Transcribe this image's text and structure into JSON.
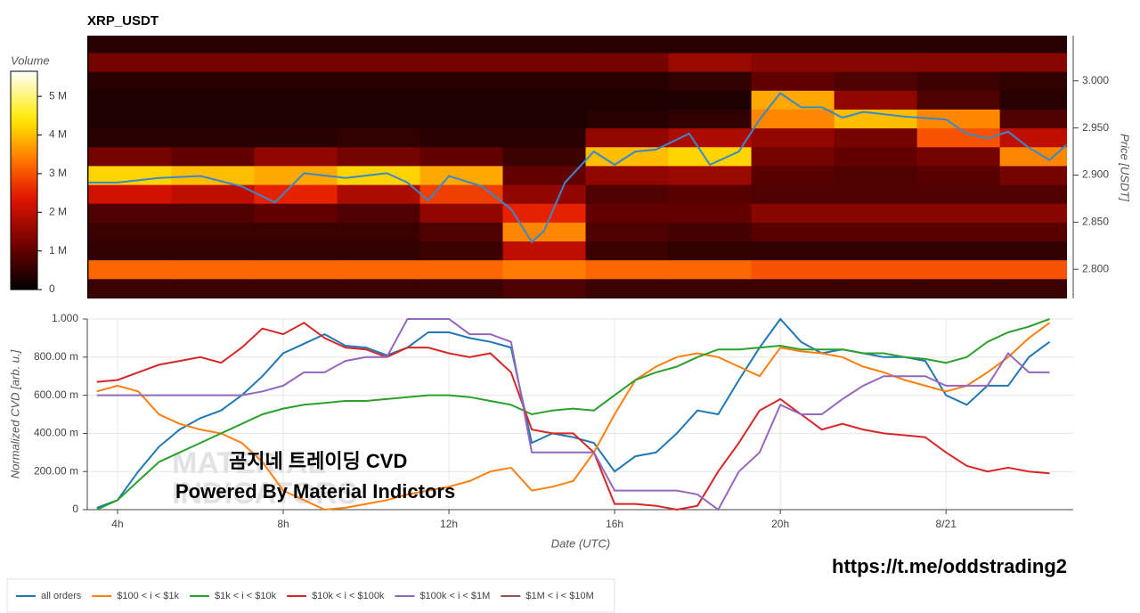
{
  "chart_data": [
    {
      "type": "heatmap",
      "title": "XRP_USDT",
      "colorbar_title": "Volume",
      "zlim": [
        0,
        5.65
      ],
      "colorbar_ticks": [
        0,
        {
          "value": 1,
          "label": "1 M"
        },
        {
          "value": 2,
          "label": "2 M"
        },
        {
          "value": 3,
          "label": "3 M"
        },
        {
          "value": 4,
          "label": "4 M"
        },
        {
          "value": 5,
          "label": "5 M"
        }
      ],
      "y_label": "Price [USDT]",
      "ylim": [
        2.769,
        3.048
      ],
      "yticks": [
        {
          "value": 2.8,
          "label": "2.800"
        },
        {
          "value": 2.85,
          "label": "2.850"
        },
        {
          "value": 2.9,
          "label": "2.900"
        },
        {
          "value": 2.95,
          "label": "2.950"
        },
        {
          "value": 3.0,
          "label": "3.000"
        }
      ],
      "xlim": [
        3.27,
        26.92
      ],
      "x_bins": [
        3.3,
        5.3,
        7.3,
        9.3,
        11.3,
        13.3,
        15.3,
        17.3,
        19.3,
        21.3,
        23.3,
        25.3,
        26.92
      ],
      "y_bins": [
        2.77,
        2.79,
        2.81,
        2.83,
        2.85,
        2.87,
        2.89,
        2.91,
        2.93,
        2.95,
        2.97,
        2.99,
        3.01,
        3.03,
        3.05
      ],
      "z": [
        [
          0.6,
          0.6,
          0.6,
          0.6,
          0.6,
          0.8,
          0.6,
          0.6,
          0.6,
          0.6,
          0.6,
          0.6
        ],
        [
          3.2,
          3.2,
          3.2,
          3.2,
          3.2,
          3.4,
          3.2,
          3.2,
          3.0,
          3.0,
          3.0,
          3.0
        ],
        [
          0.5,
          0.5,
          0.5,
          0.5,
          0.6,
          2.0,
          0.6,
          0.5,
          0.5,
          0.5,
          0.5,
          0.5
        ],
        [
          0.6,
          0.6,
          0.6,
          0.6,
          0.8,
          3.5,
          0.8,
          0.7,
          0.9,
          0.9,
          0.9,
          0.9
        ],
        [
          0.8,
          0.8,
          1.0,
          0.8,
          1.5,
          2.5,
          1.0,
          1.0,
          1.4,
          1.4,
          1.4,
          1.4
        ],
        [
          2.2,
          2.0,
          2.5,
          1.8,
          2.8,
          1.5,
          0.8,
          0.9,
          0.8,
          0.8,
          0.8,
          0.8
        ],
        [
          4.2,
          4.0,
          3.8,
          4.2,
          3.8,
          1.0,
          1.5,
          1.6,
          0.9,
          0.8,
          0.9,
          1.2
        ],
        [
          1.2,
          1.0,
          1.5,
          1.2,
          1.0,
          0.6,
          4.0,
          4.2,
          1.2,
          1.0,
          1.2,
          3.5
        ],
        [
          0.4,
          0.4,
          0.4,
          0.5,
          0.4,
          0.4,
          1.5,
          1.8,
          1.5,
          1.2,
          3.0,
          2.0
        ],
        [
          0.3,
          0.3,
          0.3,
          0.3,
          0.3,
          0.3,
          0.4,
          0.5,
          3.5,
          4.0,
          3.5,
          0.8
        ],
        [
          0.3,
          0.3,
          0.3,
          0.3,
          0.3,
          0.3,
          0.3,
          0.3,
          3.8,
          1.5,
          0.8,
          0.4
        ],
        [
          0.4,
          0.4,
          0.4,
          0.4,
          0.4,
          0.4,
          0.4,
          0.5,
          1.0,
          0.8,
          0.6,
          0.5
        ],
        [
          1.2,
          1.2,
          1.2,
          1.2,
          1.2,
          1.2,
          1.2,
          1.6,
          1.4,
          1.4,
          1.4,
          1.4
        ],
        [
          0.4,
          0.4,
          0.4,
          0.4,
          0.4,
          0.4,
          0.4,
          0.4,
          0.4,
          0.4,
          0.4,
          0.4
        ]
      ],
      "price": {
        "color": "#3a88c8",
        "x": [
          3.3,
          4,
          5,
          6,
          7,
          7.8,
          8.5,
          9.5,
          10.5,
          11,
          11.5,
          12,
          12.8,
          13.5,
          14,
          14.3,
          14.8,
          15.5,
          16,
          16.5,
          17,
          17.8,
          18.3,
          19,
          19.5,
          20,
          20.5,
          21,
          21.5,
          22,
          23,
          24,
          24.5,
          25,
          25.5,
          26,
          26.5,
          26.9
        ],
        "values": [
          2.892,
          2.892,
          2.897,
          2.899,
          2.888,
          2.871,
          2.902,
          2.897,
          2.902,
          2.892,
          2.873,
          2.899,
          2.888,
          2.864,
          2.829,
          2.841,
          2.892,
          2.925,
          2.911,
          2.925,
          2.927,
          2.944,
          2.911,
          2.925,
          2.959,
          2.987,
          2.972,
          2.972,
          2.961,
          2.967,
          2.962,
          2.959,
          2.944,
          2.939,
          2.946,
          2.929,
          2.916,
          2.932
        ]
      }
    },
    {
      "type": "line",
      "x_label": "Date (UTC)",
      "y_label": "Normalized CVD [arb. u.]",
      "xlim": [
        3.27,
        27.07
      ],
      "xticks": [
        {
          "value": 4,
          "label": "4h"
        },
        {
          "value": 8,
          "label": "8h"
        },
        {
          "value": 12,
          "label": "12h"
        },
        {
          "value": 16,
          "label": "16h"
        },
        {
          "value": 20,
          "label": "20h"
        },
        {
          "value": 24,
          "label": "8/21"
        }
      ],
      "ylim": [
        0,
        1
      ],
      "yticks": [
        0,
        {
          "value": 0.2,
          "label": "200.00 m"
        },
        {
          "value": 0.4,
          "label": "400.00 m"
        },
        {
          "value": 0.6,
          "label": "600.00 m"
        },
        {
          "value": 0.8,
          "label": "800.00 m"
        },
        {
          "value": 1,
          "label": "1.000"
        }
      ],
      "grid": true,
      "legend": "bottom",
      "x": [
        3.5,
        4,
        4.5,
        5,
        5.5,
        6,
        6.5,
        7,
        7.5,
        8,
        8.5,
        9,
        9.5,
        10,
        10.5,
        11,
        11.5,
        12,
        12.5,
        13,
        13.5,
        14,
        14.5,
        15,
        15.5,
        16,
        16.5,
        17,
        17.5,
        18,
        18.5,
        19,
        19.5,
        20,
        20.5,
        21,
        21.5,
        22,
        22.5,
        23,
        23.5,
        24,
        24.5,
        25,
        25.5,
        26,
        26.5
      ],
      "series": [
        {
          "name": "all orders",
          "color": "#1f77b4",
          "values": [
            0.01,
            0.05,
            0.2,
            0.33,
            0.42,
            0.48,
            0.52,
            0.6,
            0.7,
            0.82,
            0.87,
            0.92,
            0.86,
            0.85,
            0.81,
            0.85,
            0.93,
            0.93,
            0.9,
            0.88,
            0.85,
            0.35,
            0.4,
            0.38,
            0.35,
            0.2,
            0.28,
            0.3,
            0.4,
            0.52,
            0.5,
            0.68,
            0.85,
            1.0,
            0.88,
            0.82,
            0.84,
            0.82,
            0.8,
            0.8,
            0.78,
            0.6,
            0.55,
            0.65,
            0.65,
            0.8,
            0.88
          ]
        },
        {
          "name": "$100 < i < $1k",
          "color": "#ff7f0e",
          "values": [
            0.62,
            0.65,
            0.62,
            0.5,
            0.45,
            0.42,
            0.4,
            0.35,
            0.25,
            0.1,
            0.05,
            0.0,
            0.01,
            0.03,
            0.05,
            0.08,
            0.1,
            0.12,
            0.15,
            0.2,
            0.22,
            0.1,
            0.12,
            0.15,
            0.3,
            0.5,
            0.68,
            0.75,
            0.8,
            0.82,
            0.8,
            0.75,
            0.7,
            0.85,
            0.83,
            0.82,
            0.8,
            0.75,
            0.72,
            0.68,
            0.65,
            0.62,
            0.65,
            0.72,
            0.8,
            0.9,
            0.98
          ]
        },
        {
          "name": "$1k < i < $10k",
          "color": "#2ca02c",
          "values": [
            0.0,
            0.05,
            0.15,
            0.25,
            0.3,
            0.35,
            0.4,
            0.45,
            0.5,
            0.53,
            0.55,
            0.56,
            0.57,
            0.57,
            0.58,
            0.59,
            0.6,
            0.6,
            0.59,
            0.57,
            0.55,
            0.5,
            0.52,
            0.53,
            0.52,
            0.6,
            0.68,
            0.72,
            0.75,
            0.8,
            0.84,
            0.84,
            0.85,
            0.86,
            0.84,
            0.84,
            0.84,
            0.82,
            0.82,
            0.8,
            0.79,
            0.77,
            0.8,
            0.88,
            0.93,
            0.96,
            1.0
          ]
        },
        {
          "name": "$10k < i < $100k",
          "color": "#d62728",
          "values": [
            0.67,
            0.68,
            0.72,
            0.76,
            0.78,
            0.8,
            0.77,
            0.85,
            0.95,
            0.92,
            0.98,
            0.9,
            0.85,
            0.84,
            0.8,
            0.85,
            0.85,
            0.82,
            0.8,
            0.82,
            0.72,
            0.42,
            0.4,
            0.4,
            0.3,
            0.03,
            0.03,
            0.02,
            0.0,
            0.02,
            0.2,
            0.35,
            0.52,
            0.58,
            0.5,
            0.42,
            0.45,
            0.42,
            0.4,
            0.39,
            0.38,
            0.3,
            0.23,
            0.2,
            0.22,
            0.2,
            0.19
          ]
        },
        {
          "name": "$100k < i < $1M",
          "color": "#9467bd",
          "values": [
            0.6,
            0.6,
            0.6,
            0.6,
            0.6,
            0.6,
            0.6,
            0.6,
            0.62,
            0.65,
            0.72,
            0.72,
            0.78,
            0.8,
            0.8,
            1.0,
            1.0,
            1.0,
            0.92,
            0.92,
            0.88,
            0.3,
            0.3,
            0.3,
            0.3,
            0.1,
            0.1,
            0.1,
            0.1,
            0.08,
            0.0,
            0.2,
            0.3,
            0.55,
            0.5,
            0.5,
            0.58,
            0.65,
            0.7,
            0.7,
            0.7,
            0.65,
            0.65,
            0.65,
            0.82,
            0.72,
            0.72
          ]
        },
        {
          "name": "$1M < i < $10M",
          "color": "#8c564b"
        }
      ]
    }
  ],
  "overlay": {
    "headline": "곰지네 트레이딩 CVD",
    "byline": "Powered By Material Indictors",
    "watermark": [
      "MATERIAL",
      "INDICATORS"
    ],
    "link": "https://t.me/oddstrading2"
  }
}
